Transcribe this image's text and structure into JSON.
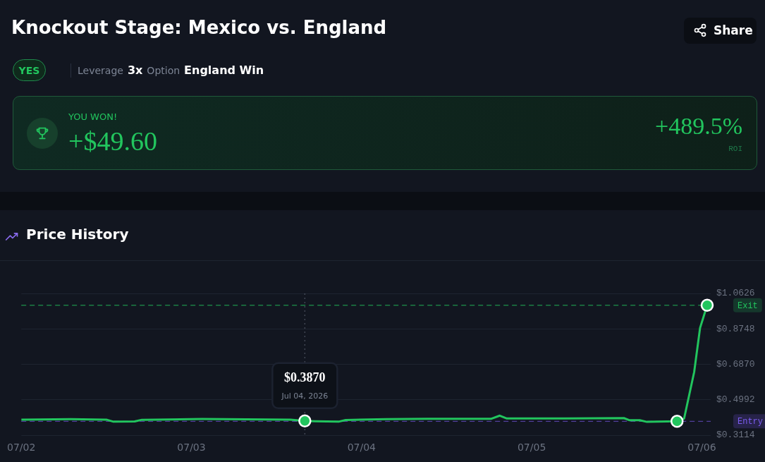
{
  "chart_data": [
    {
      "type": "other",
      "title": "Knockout Stage: Mexico vs. England",
      "annotations": [
        "Share",
        "YES",
        "Leverage",
        "3x",
        "Option",
        "England Win",
        "YOU WON!",
        "+$49.60",
        "+489.5%",
        "ROI"
      ]
    },
    {
      "type": "line",
      "title": "Price History",
      "legend": false,
      "grid": "y",
      "marker": "none",
      "line_style": "solid",
      "xlim": [
        "2026-07-02T00:00",
        "2026-07-06T01:15"
      ],
      "xticks": [
        {
          "value": "2026-07-02",
          "label": "07/02"
        },
        {
          "value": "2026-07-03",
          "label": "07/03"
        },
        {
          "value": "2026-07-04",
          "label": "07/04"
        },
        {
          "value": "2026-07-05",
          "label": "07/05"
        },
        {
          "value": "2026-07-06",
          "label": "07/06"
        }
      ],
      "ylim": [
        0.3114,
        1.0626
      ],
      "yticks": [
        {
          "value": 0.3114,
          "label": "$0.3114"
        },
        {
          "value": 0.4992,
          "label": "$0.4992"
        },
        {
          "value": 0.687,
          "label": "$0.6870"
        },
        {
          "value": 0.8748,
          "label": "$0.8748"
        },
        {
          "value": 1.0626,
          "label": "$1.0626"
        }
      ],
      "series": [
        {
          "type": "line",
          "color": "#22c55e",
          "x": [
            "2026-07-02T00:00",
            "2026-07-02T07:00",
            "2026-07-02T12:00",
            "2026-07-02T13:00",
            "2026-07-02T16:00",
            "2026-07-02T17:00",
            "2026-07-03T01:30",
            "2026-07-03T14:00",
            "2026-07-03T16:00",
            "2026-07-03T17:30",
            "2026-07-03T20:45",
            "2026-07-03T21:45",
            "2026-07-04T03:30",
            "2026-07-04T09:15",
            "2026-07-04T18:15",
            "2026-07-04T19:30",
            "2026-07-04T20:30",
            "2026-07-05T04:45",
            "2026-07-05T13:00",
            "2026-07-05T13:45",
            "2026-07-05T15:15",
            "2026-07-05T16:15",
            "2026-07-05T20:30",
            "2026-07-05T21:30",
            "2026-07-05T22:55",
            "2026-07-05T23:45",
            "2026-07-06T00:45"
          ],
          "values": [
            0.394,
            0.396,
            0.394,
            0.383,
            0.384,
            0.393,
            0.397,
            0.394,
            0.387,
            0.385,
            0.383,
            0.392,
            0.396,
            0.398,
            0.398,
            0.415,
            0.4,
            0.4,
            0.402,
            0.391,
            0.391,
            0.382,
            0.385,
            0.4,
            0.646,
            0.88,
            1.0
          ]
        },
        {
          "type": "scatter",
          "color": "#22c55e",
          "marker": "circle",
          "x": [
            "2026-07-03T16:00",
            "2026-07-05T20:30",
            "2026-07-06T00:45"
          ],
          "values": [
            0.387,
            0.385,
            1.0
          ]
        }
      ],
      "ref_lines": [
        {
          "axis": "y",
          "value": 1.0,
          "label": "Exit",
          "color": "#22c55e",
          "line_style": "dashed"
        },
        {
          "axis": "y",
          "value": 0.385,
          "label": "Entry",
          "color": "#7c5cf0",
          "line_style": "dashed"
        },
        {
          "axis": "x",
          "value": "2026-07-03T16:00",
          "color": "#6b7280",
          "line_style": "dotted"
        }
      ],
      "annotations": [
        {
          "text": "$0.3870\nJul 04, 2026",
          "x": "2026-07-03T16:00",
          "y": 0.387
        }
      ]
    }
  ]
}
